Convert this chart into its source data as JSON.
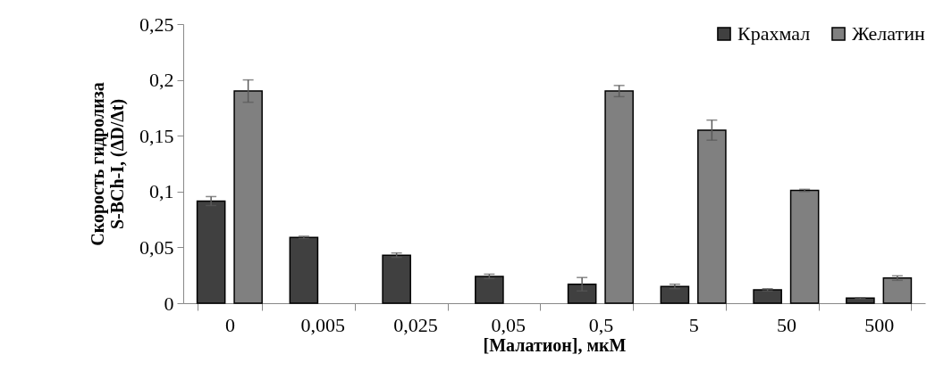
{
  "chart_data": {
    "type": "bar",
    "xlabel": "[Малатион], мкМ",
    "ylabel": "Скорость гидролиза\nS-BCh-I, (ΔD/Δt)",
    "categories": [
      "0",
      "0,005",
      "0,025",
      "0,05",
      "0,5",
      "5",
      "50",
      "500"
    ],
    "series": [
      {
        "name": "Крахмал",
        "color": "#404040",
        "values": [
          0.0915,
          0.059,
          0.043,
          0.024,
          0.017,
          0.015,
          0.012,
          0.0045
        ],
        "errors": [
          0.004,
          0.001,
          0.002,
          0.002,
          0.006,
          0.002,
          0.001,
          0.0005
        ]
      },
      {
        "name": "Желатин",
        "color": "#808080",
        "values": [
          0.19,
          null,
          null,
          null,
          0.19,
          0.155,
          0.101,
          0.0225
        ],
        "errors": [
          0.01,
          null,
          null,
          null,
          0.005,
          0.009,
          0.001,
          0.002
        ]
      }
    ],
    "ylim": [
      0,
      0.25
    ],
    "yticks": [
      {
        "value": 0,
        "label": "0"
      },
      {
        "value": 0.05,
        "label": "0,05"
      },
      {
        "value": 0.1,
        "label": "0,1"
      },
      {
        "value": 0.15,
        "label": "0,15"
      },
      {
        "value": 0.2,
        "label": "0,2"
      },
      {
        "value": 0.25,
        "label": "0,25"
      }
    ],
    "grid": false,
    "legend": "top right"
  }
}
